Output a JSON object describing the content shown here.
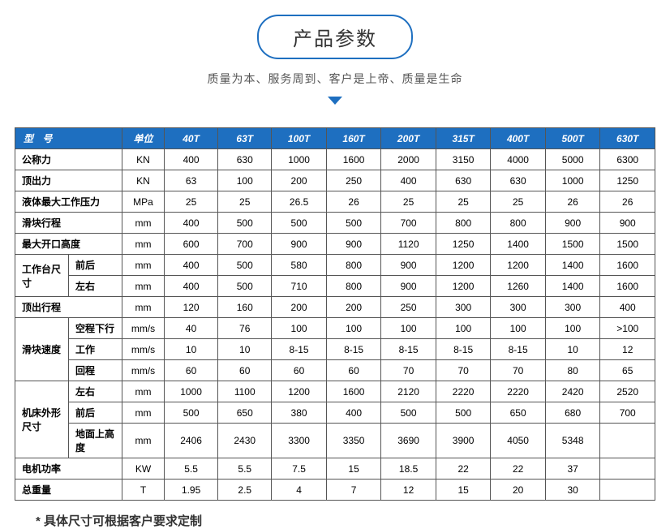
{
  "header": {
    "title": "产品参数",
    "subtitle": "质量为本、服务周到、客户是上帝、质量是生命"
  },
  "colors": {
    "accent": "#1e6fc0",
    "border": "#555555",
    "text": "#333333",
    "background": "#ffffff"
  },
  "table": {
    "model_label": "型  号",
    "unit_label": "单位",
    "models": [
      "40T",
      "63T",
      "100T",
      "160T",
      "200T",
      "315T",
      "400T",
      "500T",
      "630T"
    ],
    "rows": [
      {
        "label": "公称力",
        "sublabel": "",
        "unit": "KN",
        "values": [
          "400",
          "630",
          "1000",
          "1600",
          "2000",
          "3150",
          "4000",
          "5000",
          "6300"
        ]
      },
      {
        "label": "顶出力",
        "sublabel": "",
        "unit": "KN",
        "values": [
          "63",
          "100",
          "200",
          "250",
          "400",
          "630",
          "630",
          "1000",
          "1250"
        ]
      },
      {
        "label": "液体最大工作压力",
        "sublabel": "",
        "unit": "MPa",
        "values": [
          "25",
          "25",
          "26.5",
          "26",
          "25",
          "25",
          "25",
          "26",
          "26"
        ]
      },
      {
        "label": "滑块行程",
        "sublabel": "",
        "unit": "mm",
        "values": [
          "400",
          "500",
          "500",
          "500",
          "700",
          "800",
          "800",
          "900",
          "900"
        ]
      },
      {
        "label": "最大开口高度",
        "sublabel": "",
        "unit": "mm",
        "values": [
          "600",
          "700",
          "900",
          "900",
          "1120",
          "1250",
          "1400",
          "1500",
          "1500"
        ]
      },
      {
        "label": "工作台尺寸",
        "sublabel": "前后",
        "unit": "mm",
        "values": [
          "400",
          "500",
          "580",
          "800",
          "900",
          "1200",
          "1200",
          "1400",
          "1600"
        ],
        "group_rowspan": 2
      },
      {
        "label": "",
        "sublabel": "左右",
        "unit": "mm",
        "values": [
          "400",
          "500",
          "710",
          "800",
          "900",
          "1200",
          "1260",
          "1400",
          "1600"
        ]
      },
      {
        "label": "顶出行程",
        "sublabel": "",
        "unit": "mm",
        "values": [
          "120",
          "160",
          "200",
          "200",
          "250",
          "300",
          "300",
          "300",
          "400"
        ]
      },
      {
        "label": "滑块速度",
        "sublabel": "空程下行",
        "unit": "mm/s",
        "values": [
          "40",
          "76",
          "100",
          "100",
          "100",
          "100",
          "100",
          "100",
          ">100"
        ],
        "group_rowspan": 3
      },
      {
        "label": "",
        "sublabel": "工作",
        "unit": "mm/s",
        "values": [
          "10",
          "10",
          "8-15",
          "8-15",
          "8-15",
          "8-15",
          "8-15",
          "10",
          "12"
        ]
      },
      {
        "label": "",
        "sublabel": "回程",
        "unit": "mm/s",
        "values": [
          "60",
          "60",
          "60",
          "60",
          "70",
          "70",
          "70",
          "80",
          "65"
        ]
      },
      {
        "label": "机床外形尺寸",
        "sublabel": "左右",
        "unit": "mm",
        "values": [
          "1000",
          "1100",
          "1200",
          "1600",
          "2120",
          "2220",
          "2220",
          "2420",
          "2520"
        ],
        "group_rowspan": 3
      },
      {
        "label": "",
        "sublabel": "前后",
        "unit": "mm",
        "values": [
          "500",
          "650",
          "380",
          "400",
          "500",
          "500",
          "650",
          "680",
          "700"
        ]
      },
      {
        "label": "",
        "sublabel": "地面上高度",
        "unit": "mm",
        "values": [
          "2406",
          "2430",
          "3300",
          "3350",
          "3690",
          "3900",
          "4050",
          "5348",
          ""
        ]
      },
      {
        "label": "电机功率",
        "sublabel": "",
        "unit": "KW",
        "values": [
          "5.5",
          "5.5",
          "7.5",
          "15",
          "18.5",
          "22",
          "22",
          "37",
          ""
        ]
      },
      {
        "label": "总重量",
        "sublabel": "",
        "unit": "T",
        "values": [
          "1.95",
          "2.5",
          "4",
          "7",
          "12",
          "15",
          "20",
          "30",
          ""
        ]
      }
    ]
  },
  "footnote": "* 具体尺寸可根据客户要求定制"
}
